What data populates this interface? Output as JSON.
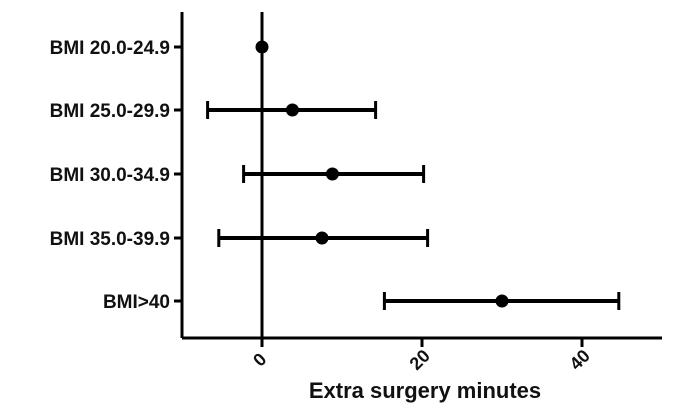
{
  "chart_data": {
    "type": "forest",
    "title": "",
    "xlabel": "Extra surgery minutes",
    "ylabel": "",
    "xlim": [
      -10,
      50
    ],
    "xticks": [
      0,
      20,
      40
    ],
    "tick_labels": [
      "0",
      "20",
      "40"
    ],
    "reference_line": 0,
    "grid": false,
    "categories": [
      "BMI 20.0-24.9",
      "BMI 25.0-29.9",
      "BMI 30.0-34.9",
      "BMI 35.0-39.9",
      "BMI>40"
    ],
    "estimates": [
      0,
      3.8,
      8.8,
      7.5,
      30.0
    ],
    "ci_lower": [
      0,
      -6.8,
      -2.3,
      -5.4,
      15.3
    ],
    "ci_upper": [
      0,
      14.2,
      20.2,
      20.7,
      44.6
    ]
  },
  "colors": {
    "ink": "#000000",
    "text": "#111111",
    "background": "#ffffff"
  }
}
